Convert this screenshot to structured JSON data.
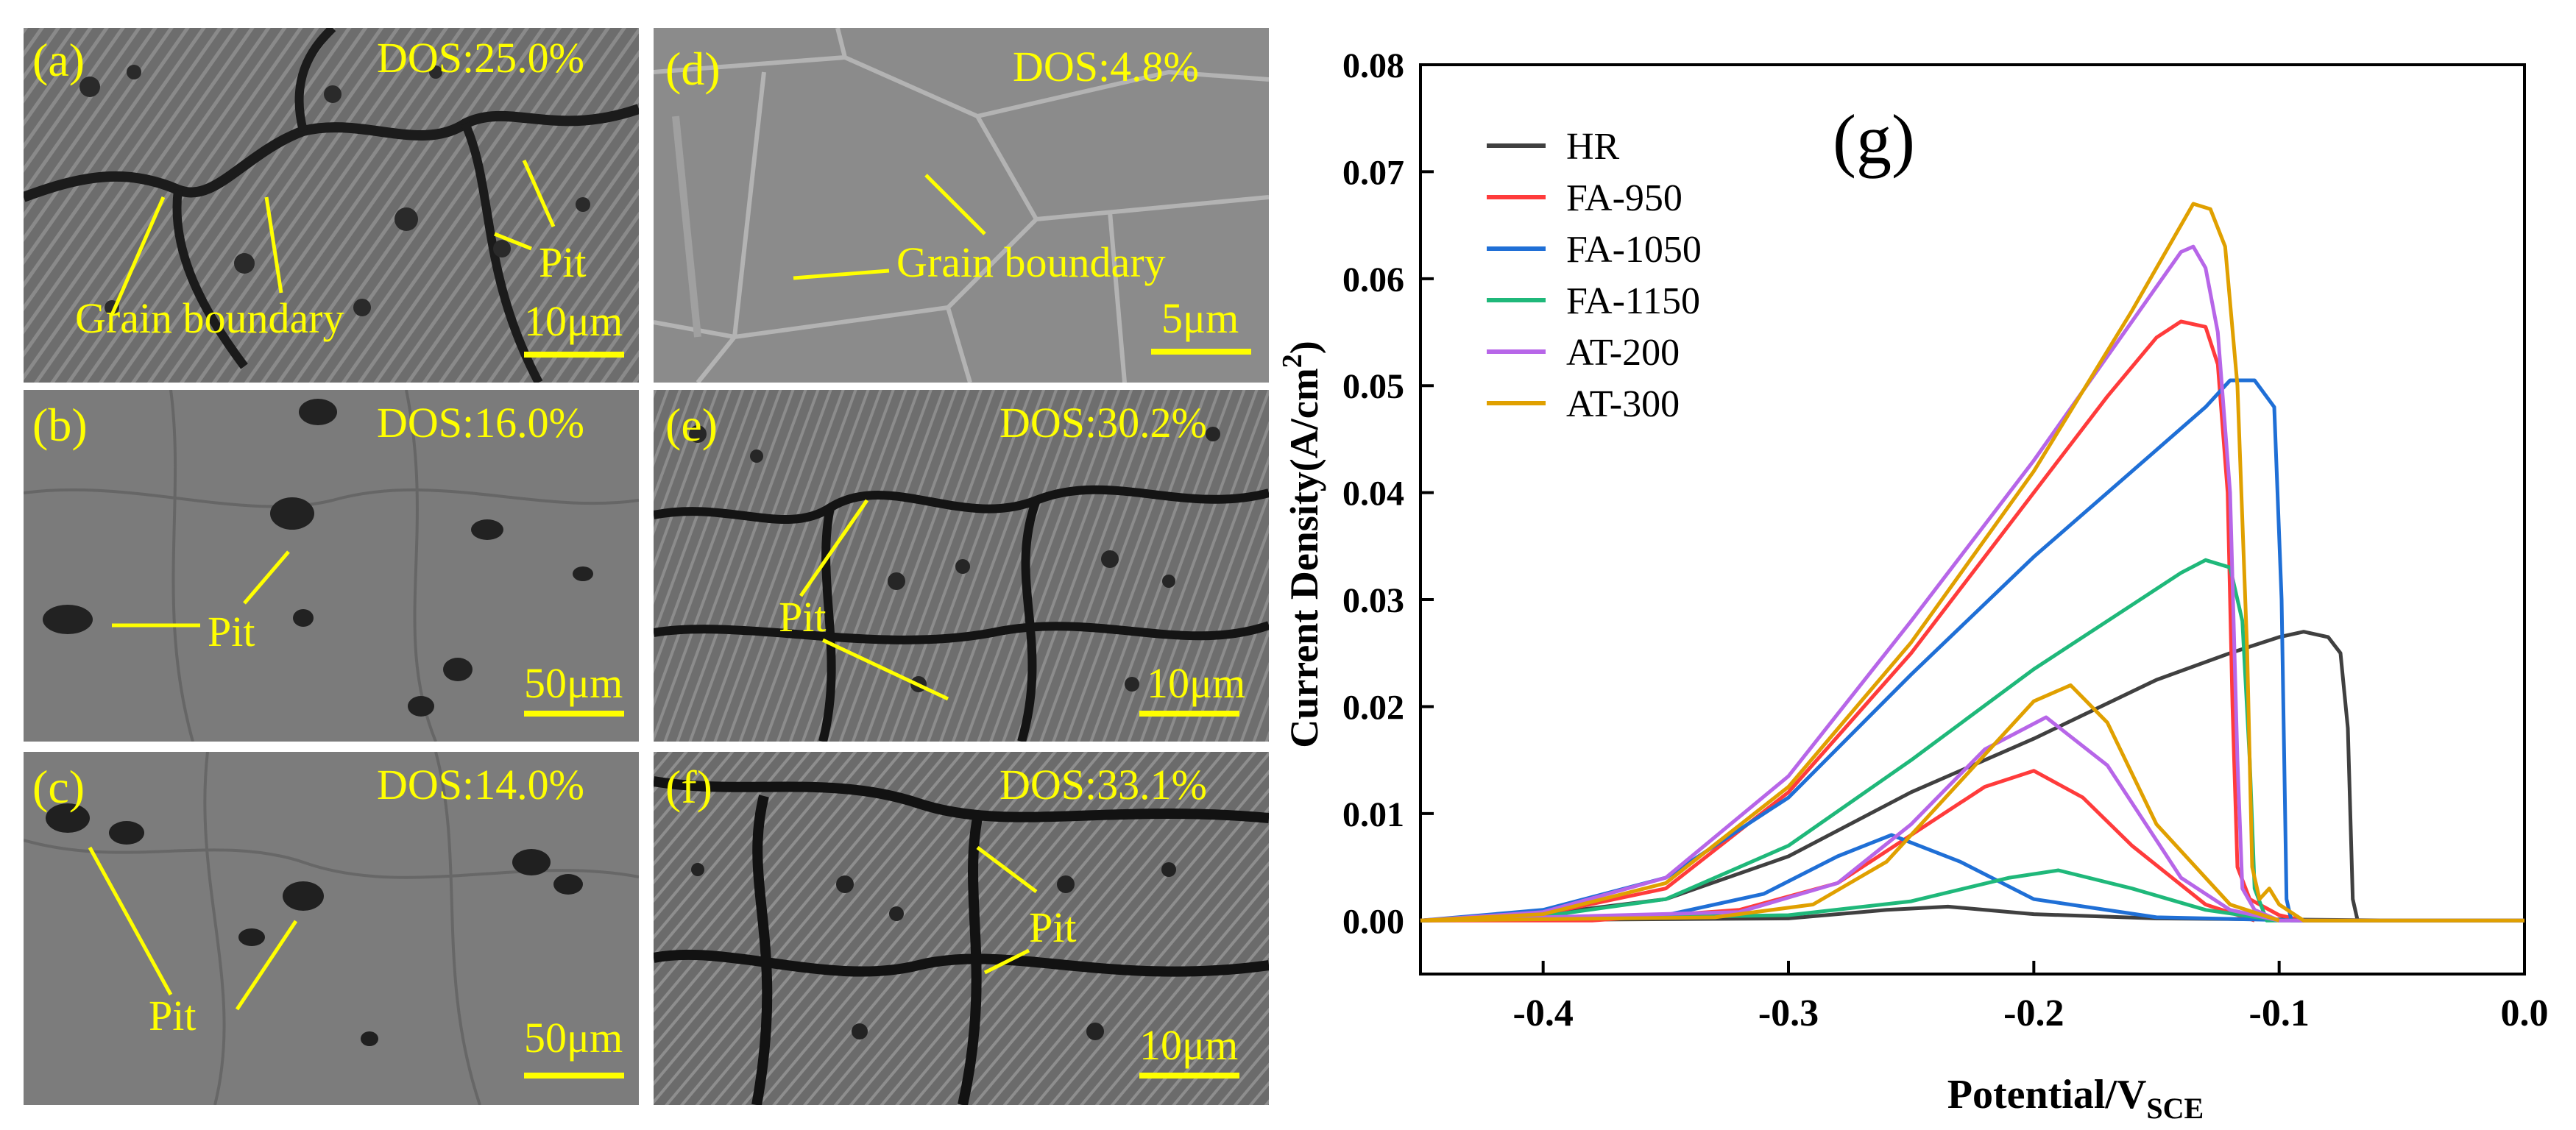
{
  "figure": {
    "panels": [
      {
        "id": "a",
        "label": "(a)",
        "dos": "DOS:25.0%",
        "scale": "10μm",
        "annotations": [
          {
            "key": "grain",
            "text": "Grain boundary"
          },
          {
            "key": "pit",
            "text": "Pit"
          }
        ]
      },
      {
        "id": "b",
        "label": "(b)",
        "dos": "DOS:16.0%",
        "scale": "50μm",
        "annotations": [
          {
            "key": "pit",
            "text": "Pit"
          }
        ]
      },
      {
        "id": "c",
        "label": "(c)",
        "dos": "DOS:14.0%",
        "scale": "50μm",
        "annotations": [
          {
            "key": "pit",
            "text": "Pit"
          }
        ]
      },
      {
        "id": "d",
        "label": "(d)",
        "dos": "DOS:4.8%",
        "scale": "5μm",
        "annotations": [
          {
            "key": "grain",
            "text": "Grain boundary"
          }
        ]
      },
      {
        "id": "e",
        "label": "(e)",
        "dos": "DOS:30.2%",
        "scale": "10μm",
        "annotations": [
          {
            "key": "pit",
            "text": "Pit"
          }
        ]
      },
      {
        "id": "f",
        "label": "(f)",
        "dos": "DOS:33.1%",
        "scale": "10μm",
        "annotations": [
          {
            "key": "pit",
            "text": "Pit"
          }
        ]
      }
    ]
  },
  "chart_data": {
    "type": "line",
    "panel_label": "(g)",
    "xlabel": "Potential/V",
    "xlabel_sub": "SCE",
    "ylabel": "Current Density(A/cm",
    "ylabel_sup": "2",
    "ylabel_end": ")",
    "xlim": [
      -0.45,
      0.0
    ],
    "ylim": [
      -0.005,
      0.08
    ],
    "xticks": [
      -0.4,
      -0.3,
      -0.2,
      -0.1,
      0.0
    ],
    "xtick_labels": [
      "-0.4",
      "-0.3",
      "-0.2",
      "-0.1",
      "0.0"
    ],
    "yticks": [
      0.0,
      0.01,
      0.02,
      0.03,
      0.04,
      0.05,
      0.06,
      0.07,
      0.08
    ],
    "ytick_labels": [
      "0.00",
      "0.01",
      "0.02",
      "0.03",
      "0.04",
      "0.05",
      "0.06",
      "0.07",
      "0.08"
    ],
    "legend_position": "top-left",
    "series": [
      {
        "name": "HR",
        "color": "#404040",
        "forward": [
          [
            -0.45,
            0
          ],
          [
            -0.4,
            0.0006
          ],
          [
            -0.35,
            0.002
          ],
          [
            -0.3,
            0.006
          ],
          [
            -0.25,
            0.012
          ],
          [
            -0.2,
            0.017
          ],
          [
            -0.15,
            0.0225
          ],
          [
            -0.12,
            0.025
          ],
          [
            -0.1,
            0.0265
          ],
          [
            -0.09,
            0.027
          ],
          [
            -0.08,
            0.0265
          ],
          [
            -0.075,
            0.025
          ],
          [
            -0.072,
            0.018
          ],
          [
            -0.07,
            0.002
          ],
          [
            -0.068,
            0
          ],
          [
            0.0,
            0
          ]
        ],
        "reverse": [
          [
            -0.05,
            0
          ],
          [
            -0.15,
            0.0002
          ],
          [
            -0.2,
            0.0006
          ],
          [
            -0.235,
            0.0013
          ],
          [
            -0.26,
            0.001
          ],
          [
            -0.3,
            0.0002
          ],
          [
            -0.45,
            0
          ]
        ]
      },
      {
        "name": "FA-950",
        "color": "#ff3b3b",
        "forward": [
          [
            -0.45,
            0
          ],
          [
            -0.4,
            0.0006
          ],
          [
            -0.35,
            0.003
          ],
          [
            -0.3,
            0.012
          ],
          [
            -0.25,
            0.025
          ],
          [
            -0.2,
            0.04
          ],
          [
            -0.17,
            0.049
          ],
          [
            -0.15,
            0.0545
          ],
          [
            -0.14,
            0.056
          ],
          [
            -0.13,
            0.0555
          ],
          [
            -0.125,
            0.052
          ],
          [
            -0.121,
            0.04
          ],
          [
            -0.119,
            0.02
          ],
          [
            -0.117,
            0.005
          ],
          [
            -0.112,
            0.002
          ],
          [
            -0.1,
            0.0005
          ],
          [
            -0.09,
            0
          ],
          [
            0.0,
            0
          ]
        ],
        "reverse": [
          [
            -0.11,
            0
          ],
          [
            -0.13,
            0.0015
          ],
          [
            -0.16,
            0.007
          ],
          [
            -0.18,
            0.0115
          ],
          [
            -0.2,
            0.014
          ],
          [
            -0.22,
            0.0125
          ],
          [
            -0.25,
            0.008
          ],
          [
            -0.28,
            0.0035
          ],
          [
            -0.32,
            0.001
          ],
          [
            -0.38,
            0
          ],
          [
            -0.45,
            0
          ]
        ]
      },
      {
        "name": "FA-1050",
        "color": "#1f6fd6",
        "forward": [
          [
            -0.45,
            0
          ],
          [
            -0.4,
            0.001
          ],
          [
            -0.35,
            0.004
          ],
          [
            -0.3,
            0.0115
          ],
          [
            -0.25,
            0.023
          ],
          [
            -0.2,
            0.034
          ],
          [
            -0.16,
            0.042
          ],
          [
            -0.13,
            0.048
          ],
          [
            -0.12,
            0.0505
          ],
          [
            -0.11,
            0.0505
          ],
          [
            -0.102,
            0.048
          ],
          [
            -0.099,
            0.03
          ],
          [
            -0.097,
            0.002
          ],
          [
            -0.095,
            0
          ],
          [
            0.0,
            0
          ]
        ],
        "reverse": [
          [
            -0.09,
            0
          ],
          [
            -0.15,
            0.0003
          ],
          [
            -0.2,
            0.002
          ],
          [
            -0.23,
            0.0055
          ],
          [
            -0.258,
            0.008
          ],
          [
            -0.28,
            0.006
          ],
          [
            -0.31,
            0.0025
          ],
          [
            -0.35,
            0.0005
          ],
          [
            -0.45,
            0
          ]
        ]
      },
      {
        "name": "FA-1150",
        "color": "#1fb87a",
        "forward": [
          [
            -0.45,
            0
          ],
          [
            -0.4,
            0.0004
          ],
          [
            -0.35,
            0.002
          ],
          [
            -0.3,
            0.007
          ],
          [
            -0.25,
            0.015
          ],
          [
            -0.2,
            0.0235
          ],
          [
            -0.16,
            0.0295
          ],
          [
            -0.14,
            0.0325
          ],
          [
            -0.13,
            0.0337
          ],
          [
            -0.12,
            0.033
          ],
          [
            -0.115,
            0.028
          ],
          [
            -0.112,
            0.015
          ],
          [
            -0.11,
            0.003
          ],
          [
            -0.105,
            0
          ],
          [
            0.0,
            0
          ]
        ],
        "reverse": [
          [
            -0.1,
            0
          ],
          [
            -0.13,
            0.001
          ],
          [
            -0.16,
            0.003
          ],
          [
            -0.19,
            0.0047
          ],
          [
            -0.21,
            0.004
          ],
          [
            -0.25,
            0.0018
          ],
          [
            -0.3,
            0.0005
          ],
          [
            -0.45,
            0
          ]
        ]
      },
      {
        "name": "AT-200",
        "color": "#b766e8",
        "forward": [
          [
            -0.45,
            0
          ],
          [
            -0.4,
            0.0008
          ],
          [
            -0.35,
            0.004
          ],
          [
            -0.3,
            0.0135
          ],
          [
            -0.25,
            0.028
          ],
          [
            -0.2,
            0.043
          ],
          [
            -0.16,
            0.056
          ],
          [
            -0.14,
            0.0625
          ],
          [
            -0.135,
            0.063
          ],
          [
            -0.13,
            0.061
          ],
          [
            -0.125,
            0.055
          ],
          [
            -0.12,
            0.04
          ],
          [
            -0.117,
            0.015
          ],
          [
            -0.115,
            0.003
          ],
          [
            -0.11,
            0.001
          ],
          [
            -0.1,
            0
          ],
          [
            0.0,
            0
          ]
        ],
        "reverse": [
          [
            -0.1,
            0
          ],
          [
            -0.12,
            0.001
          ],
          [
            -0.14,
            0.004
          ],
          [
            -0.17,
            0.0145
          ],
          [
            -0.195,
            0.019
          ],
          [
            -0.22,
            0.016
          ],
          [
            -0.25,
            0.009
          ],
          [
            -0.28,
            0.0035
          ],
          [
            -0.32,
            0.0008
          ],
          [
            -0.45,
            0
          ]
        ]
      },
      {
        "name": "AT-300",
        "color": "#e0a000",
        "forward": [
          [
            -0.45,
            0
          ],
          [
            -0.4,
            0.0006
          ],
          [
            -0.35,
            0.0035
          ],
          [
            -0.3,
            0.0125
          ],
          [
            -0.25,
            0.026
          ],
          [
            -0.2,
            0.042
          ],
          [
            -0.16,
            0.057
          ],
          [
            -0.14,
            0.065
          ],
          [
            -0.135,
            0.067
          ],
          [
            -0.128,
            0.0665
          ],
          [
            -0.122,
            0.063
          ],
          [
            -0.117,
            0.05
          ],
          [
            -0.113,
            0.025
          ],
          [
            -0.111,
            0.005
          ],
          [
            -0.108,
            0.002
          ],
          [
            -0.104,
            0.003
          ],
          [
            -0.1,
            0.0015
          ],
          [
            -0.09,
            0
          ],
          [
            0.0,
            0
          ]
        ],
        "reverse": [
          [
            -0.1,
            0
          ],
          [
            -0.12,
            0.0015
          ],
          [
            -0.15,
            0.009
          ],
          [
            -0.17,
            0.0185
          ],
          [
            -0.185,
            0.022
          ],
          [
            -0.2,
            0.0205
          ],
          [
            -0.23,
            0.013
          ],
          [
            -0.26,
            0.0055
          ],
          [
            -0.29,
            0.0015
          ],
          [
            -0.33,
            0.0003
          ],
          [
            -0.45,
            0
          ]
        ]
      }
    ]
  }
}
